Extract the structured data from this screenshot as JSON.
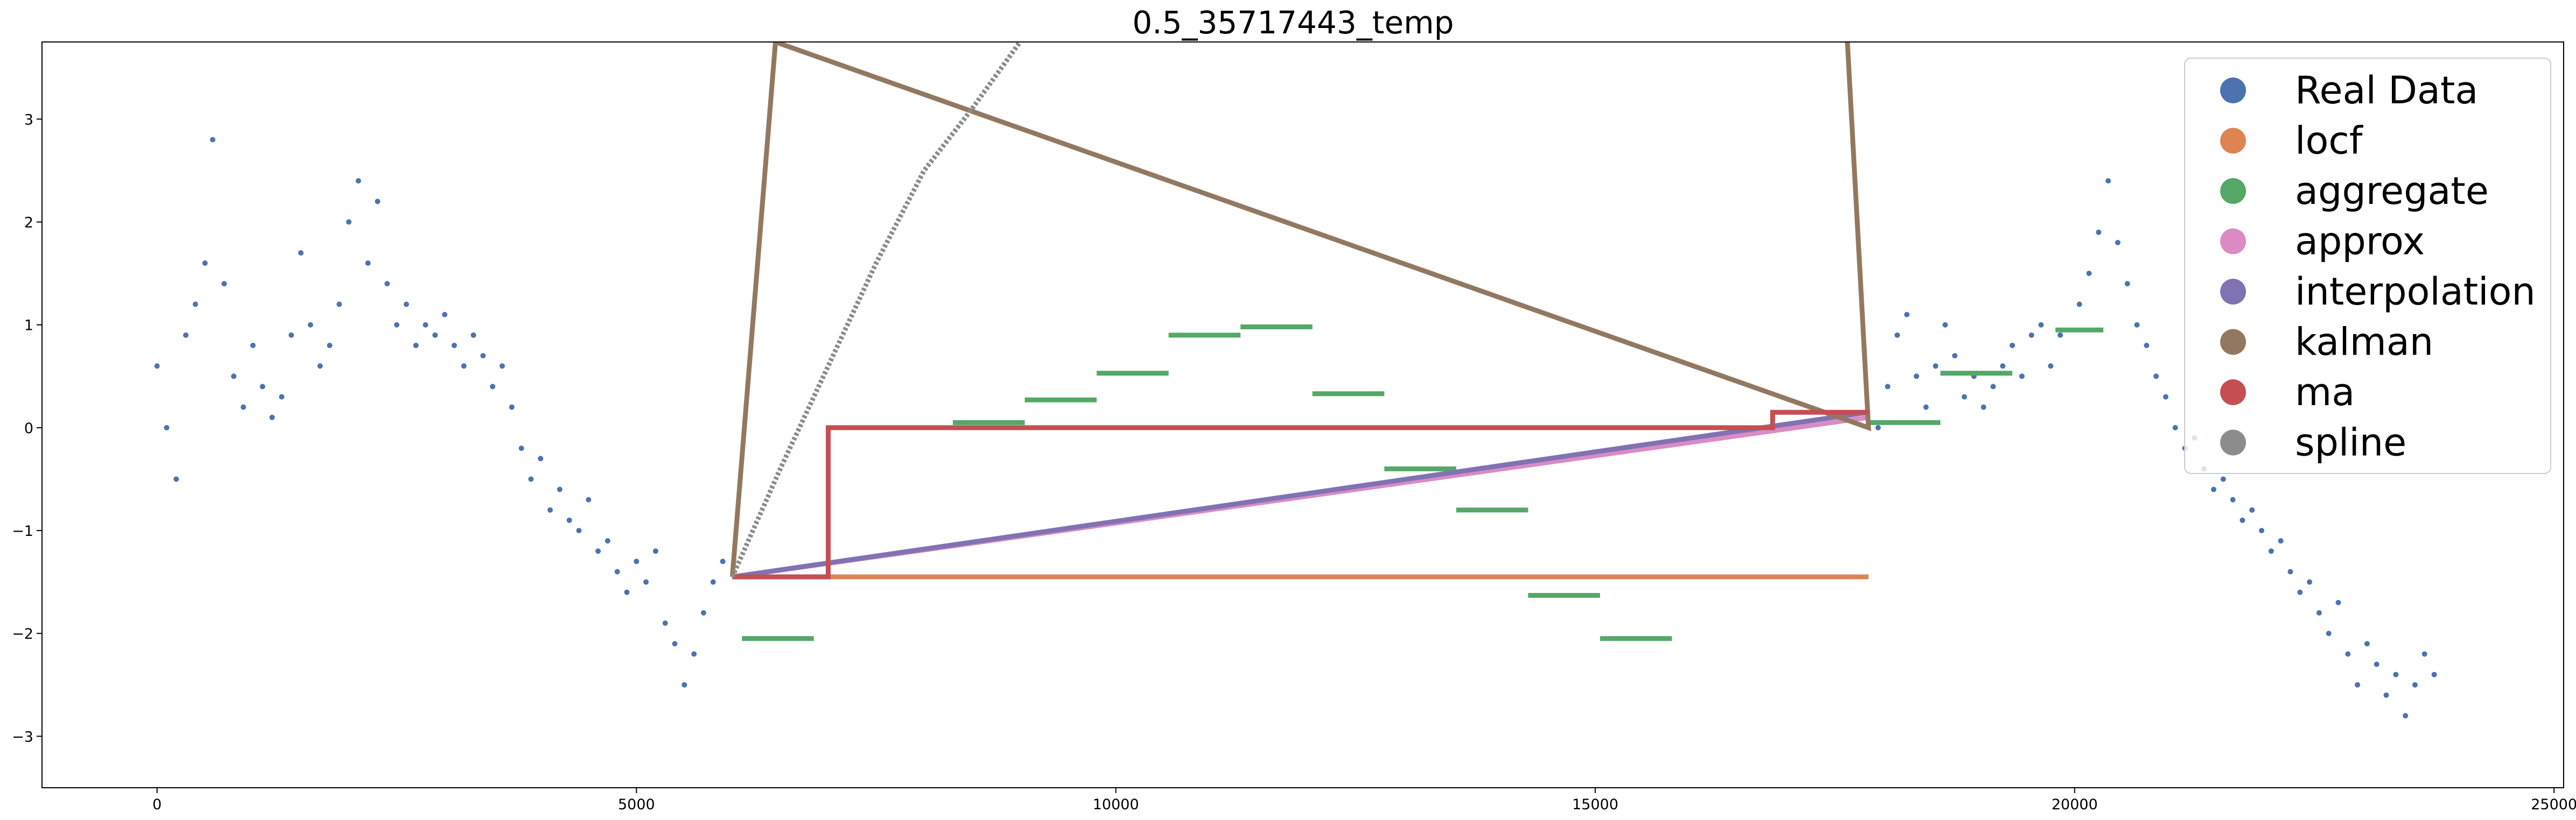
{
  "chart_data": {
    "type": "scatter",
    "title": "0.5_35717443_temp",
    "xlabel": "",
    "ylabel": "",
    "xlim": [
      -1200,
      25100
    ],
    "ylim": [
      -3.5,
      3.75
    ],
    "x_ticks": [
      0,
      5000,
      10000,
      15000,
      20000,
      25000
    ],
    "x_tick_labels": [
      "0",
      "5000",
      "10000",
      "15000",
      "20000",
      "25000"
    ],
    "y_ticks": [
      -3,
      -2,
      -1,
      0,
      1,
      2,
      3
    ],
    "y_tick_labels": [
      "−3",
      "−2",
      "−1",
      "0",
      "1",
      "2",
      "3"
    ],
    "grid": false,
    "legend_position": "upper-right",
    "colors": {
      "Real Data": "#4c72b0",
      "locf": "#dd8452",
      "aggregate": "#55a868",
      "approx": "#da8bc3",
      "interpolation": "#8172b3",
      "kalman": "#937860",
      "ma": "#c44e52",
      "spline": "#8c8c8c"
    },
    "legend": [
      "Real Data",
      "locf",
      "aggregate",
      "approx",
      "interpolation",
      "kalman",
      "ma",
      "spline"
    ],
    "series": [
      {
        "name": "Real Data",
        "kind": "scatter",
        "points": [
          [
            0,
            0.6
          ],
          [
            100,
            0.0
          ],
          [
            200,
            -0.5
          ],
          [
            300,
            0.9
          ],
          [
            400,
            1.2
          ],
          [
            500,
            1.6
          ],
          [
            580,
            2.8
          ],
          [
            700,
            1.4
          ],
          [
            800,
            0.5
          ],
          [
            900,
            0.2
          ],
          [
            1000,
            0.8
          ],
          [
            1100,
            0.4
          ],
          [
            1200,
            0.1
          ],
          [
            1300,
            0.3
          ],
          [
            1400,
            0.9
          ],
          [
            1500,
            1.7
          ],
          [
            1600,
            1.0
          ],
          [
            1700,
            0.6
          ],
          [
            1800,
            0.8
          ],
          [
            1900,
            1.2
          ],
          [
            2000,
            2.0
          ],
          [
            2100,
            2.4
          ],
          [
            2200,
            1.6
          ],
          [
            2300,
            2.2
          ],
          [
            2400,
            1.4
          ],
          [
            2500,
            1.0
          ],
          [
            2600,
            1.2
          ],
          [
            2700,
            0.8
          ],
          [
            2800,
            1.0
          ],
          [
            2900,
            0.9
          ],
          [
            3000,
            1.1
          ],
          [
            3100,
            0.8
          ],
          [
            3200,
            0.6
          ],
          [
            3300,
            0.9
          ],
          [
            3400,
            0.7
          ],
          [
            3500,
            0.4
          ],
          [
            3600,
            0.6
          ],
          [
            3700,
            0.2
          ],
          [
            3800,
            -0.2
          ],
          [
            3900,
            -0.5
          ],
          [
            4000,
            -0.3
          ],
          [
            4100,
            -0.8
          ],
          [
            4200,
            -0.6
          ],
          [
            4300,
            -0.9
          ],
          [
            4400,
            -1.0
          ],
          [
            4500,
            -0.7
          ],
          [
            4600,
            -1.2
          ],
          [
            4700,
            -1.1
          ],
          [
            4800,
            -1.4
          ],
          [
            4900,
            -1.6
          ],
          [
            5000,
            -1.3
          ],
          [
            5100,
            -1.5
          ],
          [
            5200,
            -1.2
          ],
          [
            5300,
            -1.9
          ],
          [
            5400,
            -2.1
          ],
          [
            5500,
            -2.5
          ],
          [
            5600,
            -2.2
          ],
          [
            5700,
            -1.8
          ],
          [
            5800,
            -1.5
          ],
          [
            5900,
            -1.3
          ],
          [
            17950,
            0.0
          ],
          [
            18050,
            0.4
          ],
          [
            18150,
            0.9
          ],
          [
            18250,
            1.1
          ],
          [
            18350,
            0.5
          ],
          [
            18450,
            0.2
          ],
          [
            18550,
            0.6
          ],
          [
            18650,
            1.0
          ],
          [
            18750,
            0.7
          ],
          [
            18850,
            0.3
          ],
          [
            18950,
            0.5
          ],
          [
            19050,
            0.2
          ],
          [
            19150,
            0.4
          ],
          [
            19250,
            0.6
          ],
          [
            19350,
            0.8
          ],
          [
            19450,
            0.5
          ],
          [
            19550,
            0.9
          ],
          [
            19650,
            1.0
          ],
          [
            19750,
            0.6
          ],
          [
            19850,
            0.9
          ],
          [
            20050,
            1.2
          ],
          [
            20150,
            1.5
          ],
          [
            20250,
            1.9
          ],
          [
            20350,
            2.4
          ],
          [
            20450,
            1.8
          ],
          [
            20550,
            1.4
          ],
          [
            20650,
            1.0
          ],
          [
            20750,
            0.8
          ],
          [
            20850,
            0.5
          ],
          [
            20950,
            0.3
          ],
          [
            21050,
            0.0
          ],
          [
            21150,
            -0.2
          ],
          [
            21250,
            -0.1
          ],
          [
            21350,
            -0.4
          ],
          [
            21450,
            -0.6
          ],
          [
            21550,
            -0.5
          ],
          [
            21650,
            -0.7
          ],
          [
            21750,
            -0.9
          ],
          [
            21850,
            -0.8
          ],
          [
            21950,
            -1.0
          ],
          [
            22050,
            -1.2
          ],
          [
            22150,
            -1.1
          ],
          [
            22250,
            -1.4
          ],
          [
            22350,
            -1.6
          ],
          [
            22450,
            -1.5
          ],
          [
            22550,
            -1.8
          ],
          [
            22650,
            -2.0
          ],
          [
            22750,
            -1.7
          ],
          [
            22850,
            -2.2
          ],
          [
            22950,
            -2.5
          ],
          [
            23050,
            -2.1
          ],
          [
            23150,
            -2.3
          ],
          [
            23250,
            -2.6
          ],
          [
            23350,
            -2.4
          ],
          [
            23450,
            -2.8
          ],
          [
            23550,
            -2.5
          ],
          [
            23650,
            -2.2
          ],
          [
            23750,
            -2.4
          ]
        ]
      },
      {
        "name": "locf",
        "kind": "line",
        "x": [
          6000,
          17850
        ],
        "y": [
          -1.45,
          -1.45
        ]
      },
      {
        "name": "aggregate",
        "kind": "segments",
        "segments": [
          [
            6100,
            6850,
            -2.05
          ],
          [
            8300,
            9050,
            0.05
          ],
          [
            9050,
            9800,
            0.27
          ],
          [
            9800,
            10550,
            0.53
          ],
          [
            10550,
            11300,
            0.9
          ],
          [
            11300,
            12050,
            0.98
          ],
          [
            12050,
            12800,
            0.33
          ],
          [
            12800,
            13550,
            -0.4
          ],
          [
            13550,
            14300,
            -0.8
          ],
          [
            14300,
            15050,
            -1.63
          ],
          [
            15050,
            15800,
            -2.05
          ],
          [
            17850,
            18600,
            0.05
          ],
          [
            18600,
            19350,
            0.53
          ],
          [
            19800,
            20300,
            0.95
          ]
        ]
      },
      {
        "name": "approx",
        "kind": "line",
        "x": [
          6000,
          17850
        ],
        "y": [
          -1.45,
          0.1
        ]
      },
      {
        "name": "interpolation",
        "kind": "line",
        "x": [
          6000,
          17850
        ],
        "y": [
          -1.45,
          0.15
        ]
      },
      {
        "name": "kalman",
        "kind": "line",
        "x": [
          6000,
          6450,
          17850,
          17630
        ],
        "y": [
          -1.45,
          3.75,
          0.0,
          3.75
        ]
      },
      {
        "name": "ma",
        "kind": "line",
        "x": [
          6000,
          7000,
          7000,
          16850,
          16850,
          17850
        ],
        "y": [
          -1.45,
          -1.45,
          0.0,
          0.0,
          0.15,
          0.15
        ]
      },
      {
        "name": "spline",
        "kind": "curve",
        "x": [
          6000,
          6500,
          7000,
          7500,
          8000,
          8500,
          9000
        ],
        "y": [
          -1.45,
          -0.4,
          0.6,
          1.6,
          2.5,
          3.1,
          3.75
        ]
      }
    ]
  }
}
